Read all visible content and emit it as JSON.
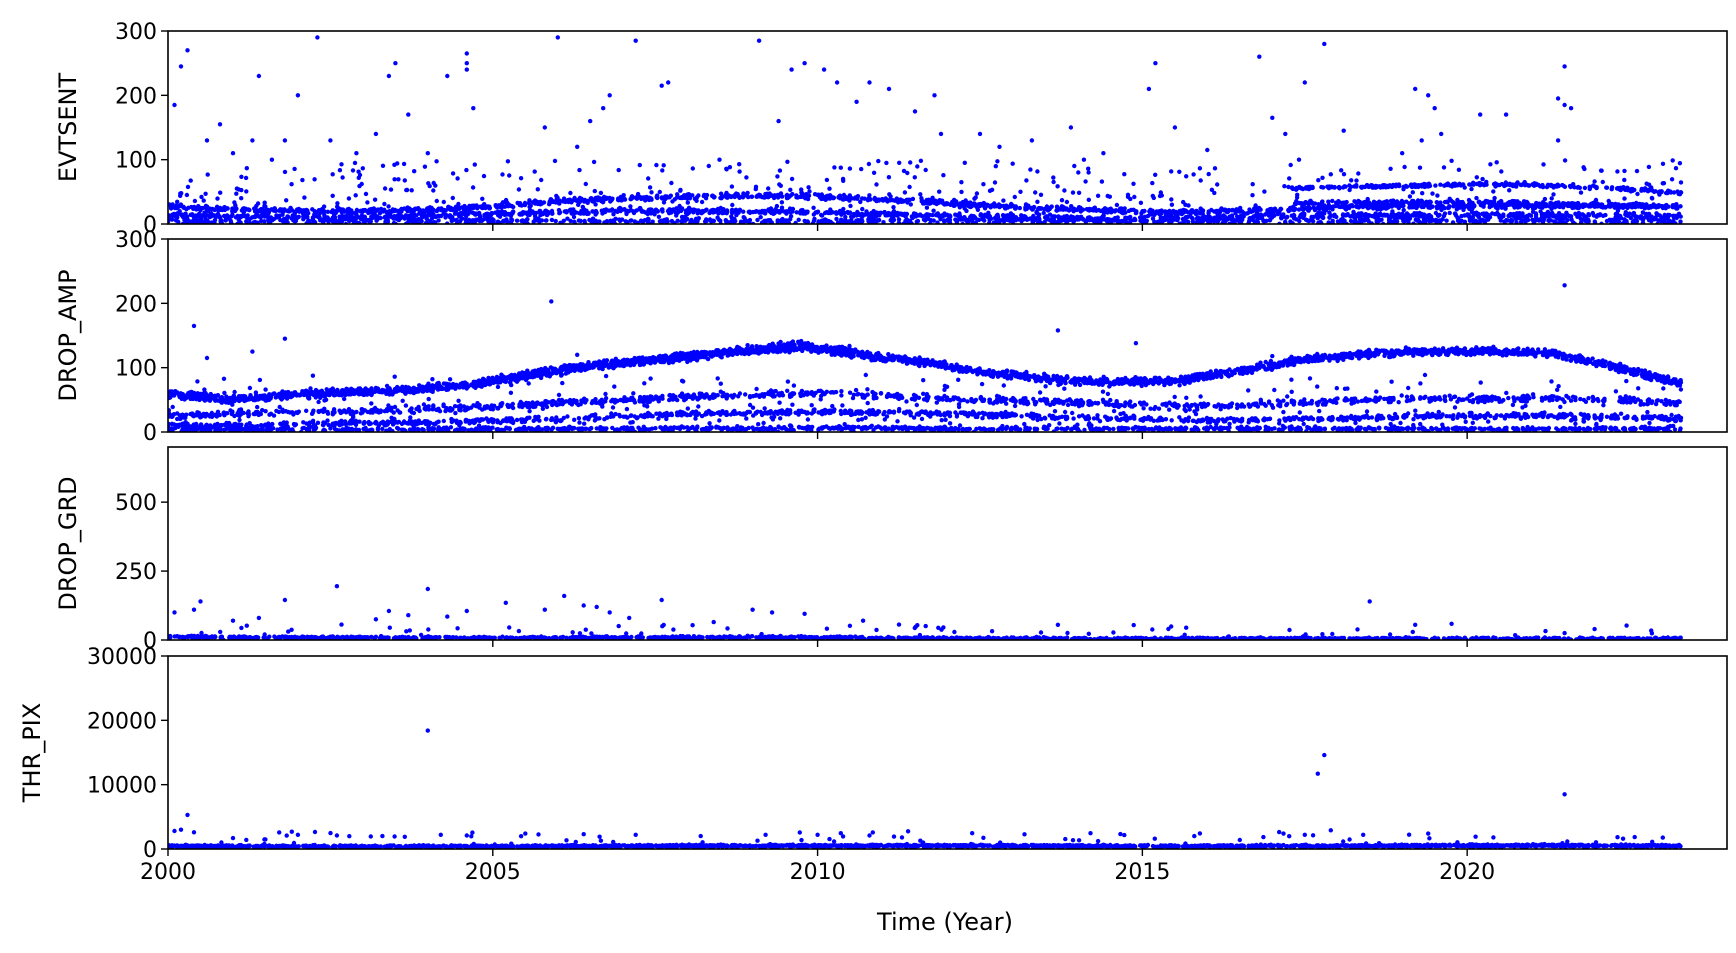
{
  "figure": {
    "xlabel": "Time (Year)",
    "point_color": "#0000ff"
  },
  "chart_data": [
    {
      "type": "scatter",
      "ylabel": "EVTSENT",
      "xlim": [
        2000,
        2024
      ],
      "ylim": [
        0,
        300
      ],
      "x_ticks": [
        2005,
        2010,
        2015,
        2020
      ],
      "y_ticks": [
        0,
        100,
        200,
        300
      ],
      "y_tick_labels": [
        "0",
        "100",
        "200",
        "300"
      ],
      "bands": [
        {
          "from": 2000.0,
          "to": 2023.3,
          "y": [
            28,
            22,
            20,
            20,
            22,
            28,
            35,
            40,
            42,
            44,
            42,
            38,
            32,
            26,
            22,
            18,
            20,
            22,
            28,
            28,
            28,
            28,
            28,
            26
          ],
          "spread": 6,
          "density": 60
        },
        {
          "from": 2000.0,
          "to": 2023.3,
          "y": [
            14,
            12,
            10,
            10,
            12,
            16,
            18,
            20,
            20,
            20,
            18,
            14,
            12,
            10,
            8,
            8,
            10,
            12,
            14,
            14,
            14,
            14,
            14,
            12
          ],
          "spread": 6,
          "density": 50
        },
        {
          "from": 2017.3,
          "to": 2023.3,
          "y": [
            55,
            58,
            60,
            62,
            60,
            55,
            48
          ],
          "spread": 4,
          "density": 45
        },
        {
          "from": 2017.3,
          "to": 2023.3,
          "y": [
            32,
            34,
            34,
            34,
            32,
            30,
            28
          ],
          "spread": 4,
          "density": 35
        },
        {
          "from": 2000.0,
          "to": 2023.3,
          "y": [
            5,
            5,
            5,
            5,
            5,
            5,
            5,
            5,
            5,
            5,
            5,
            5,
            5,
            5,
            5,
            5,
            5,
            5,
            5,
            5,
            5,
            5,
            5,
            5
          ],
          "spread": 5,
          "density": 25
        }
      ],
      "scatter": {
        "count": 900,
        "max": 100
      },
      "outliers": [
        [
          2000.1,
          185
        ],
        [
          2000.2,
          245
        ],
        [
          2000.3,
          270
        ],
        [
          2000.6,
          130
        ],
        [
          2000.8,
          155
        ],
        [
          2001.0,
          110
        ],
        [
          2001.3,
          130
        ],
        [
          2001.4,
          230
        ],
        [
          2001.6,
          100
        ],
        [
          2001.8,
          130
        ],
        [
          2002.0,
          200
        ],
        [
          2002.3,
          290
        ],
        [
          2002.5,
          130
        ],
        [
          2002.9,
          110
        ],
        [
          2003.2,
          140
        ],
        [
          2003.4,
          230
        ],
        [
          2003.5,
          250
        ],
        [
          2003.7,
          170
        ],
        [
          2004.0,
          110
        ],
        [
          2004.3,
          230
        ],
        [
          2004.6,
          250
        ],
        [
          2004.6,
          265
        ],
        [
          2004.6,
          240
        ],
        [
          2004.7,
          180
        ],
        [
          2005.8,
          150
        ],
        [
          2006.0,
          290
        ],
        [
          2006.3,
          120
        ],
        [
          2006.5,
          160
        ],
        [
          2006.7,
          180
        ],
        [
          2006.8,
          200
        ],
        [
          2007.2,
          285
        ],
        [
          2007.6,
          215
        ],
        [
          2007.7,
          220
        ],
        [
          2008.6,
          85
        ],
        [
          2009.1,
          285
        ],
        [
          2009.4,
          160
        ],
        [
          2009.6,
          240
        ],
        [
          2009.8,
          250
        ],
        [
          2010.1,
          240
        ],
        [
          2010.3,
          220
        ],
        [
          2010.6,
          190
        ],
        [
          2010.8,
          220
        ],
        [
          2011.1,
          210
        ],
        [
          2011.5,
          175
        ],
        [
          2011.8,
          200
        ],
        [
          2011.9,
          140
        ],
        [
          2012.5,
          140
        ],
        [
          2012.8,
          120
        ],
        [
          2013.3,
          130
        ],
        [
          2013.9,
          150
        ],
        [
          2014.1,
          100
        ],
        [
          2014.4,
          110
        ],
        [
          2015.2,
          250
        ],
        [
          2015.1,
          210
        ],
        [
          2015.5,
          150
        ],
        [
          2016.0,
          115
        ],
        [
          2016.8,
          260
        ],
        [
          2017.0,
          165
        ],
        [
          2017.2,
          140
        ],
        [
          2017.5,
          220
        ],
        [
          2017.8,
          280
        ],
        [
          2018.1,
          145
        ],
        [
          2019.0,
          110
        ],
        [
          2019.2,
          210
        ],
        [
          2019.4,
          200
        ],
        [
          2019.3,
          130
        ],
        [
          2019.5,
          180
        ],
        [
          2019.6,
          140
        ],
        [
          2020.2,
          170
        ],
        [
          2020.6,
          170
        ],
        [
          2021.4,
          130
        ],
        [
          2021.5,
          245
        ],
        [
          2021.4,
          195
        ],
        [
          2021.5,
          185
        ],
        [
          2021.6,
          180
        ]
      ]
    },
    {
      "type": "scatter",
      "ylabel": "DROP_AMP",
      "xlim": [
        2000,
        2024
      ],
      "ylim": [
        0,
        300
      ],
      "x_ticks": [
        2005,
        2010,
        2015,
        2020
      ],
      "y_ticks": [
        0,
        100,
        200,
        300
      ],
      "y_tick_labels": [
        "0",
        "100",
        "200",
        "300"
      ],
      "bands": [
        {
          "from": 2000.0,
          "to": 2023.3,
          "y": [
            60,
            50,
            58,
            62,
            66,
            76,
            92,
            105,
            115,
            125,
            135,
            120,
            108,
            92,
            82,
            78,
            80,
            95,
            112,
            122,
            125,
            126,
            122,
            100,
            75
          ],
          "spread": 9,
          "density": 120
        },
        {
          "from": 2005.0,
          "to": 2010.5,
          "y": [
            82,
            100,
            112,
            122,
            128,
            130
          ],
          "spread": 6,
          "density": 60
        },
        {
          "from": 2000.0,
          "to": 2023.3,
          "y": [
            25,
            28,
            30,
            32,
            35,
            40,
            45,
            50,
            55,
            58,
            62,
            55,
            50,
            48,
            45,
            42,
            40,
            45,
            50,
            52,
            52,
            52,
            50,
            45
          ],
          "spread": 8,
          "density": 45
        },
        {
          "from": 2000.0,
          "to": 2023.3,
          "y": [
            10,
            10,
            12,
            14,
            15,
            18,
            20,
            25,
            28,
            30,
            32,
            30,
            28,
            25,
            22,
            20,
            18,
            20,
            22,
            24,
            25,
            25,
            24,
            20
          ],
          "spread": 6,
          "density": 45
        },
        {
          "from": 2000.0,
          "to": 2023.3,
          "y": [
            4,
            4,
            4,
            4,
            4,
            4,
            5,
            5,
            6,
            6,
            6,
            6,
            5,
            5,
            5,
            5,
            5,
            5,
            5,
            5,
            5,
            5,
            5,
            4
          ],
          "spread": 4,
          "density": 40
        }
      ],
      "scatter": {
        "count": 500,
        "max": 90
      },
      "outliers": [
        [
          2000.4,
          165
        ],
        [
          2000.6,
          115
        ],
        [
          2001.3,
          125
        ],
        [
          2001.8,
          145
        ],
        [
          2005.9,
          203
        ],
        [
          2006.3,
          120
        ],
        [
          2013.7,
          158
        ],
        [
          2014.9,
          138
        ],
        [
          2021.5,
          228
        ],
        [
          2017.0,
          118
        ]
      ]
    },
    {
      "type": "scatter",
      "ylabel": "DROP_GRD",
      "xlim": [
        2000,
        2024
      ],
      "ylim": [
        0,
        700
      ],
      "x_ticks": [
        2005,
        2010,
        2015,
        2020
      ],
      "y_ticks": [
        0,
        250,
        500
      ],
      "y_tick_labels": [
        "0",
        "250",
        "500"
      ],
      "bands": [
        {
          "from": 2000.0,
          "to": 2023.3,
          "y": [
            12,
            10,
            9,
            8,
            8,
            8,
            8,
            9,
            10,
            10,
            9,
            7,
            6,
            5,
            5,
            5,
            5,
            5,
            5,
            5,
            5,
            5,
            5,
            5
          ],
          "spread": 6,
          "density": 60
        }
      ],
      "scatter": {
        "count": 140,
        "max": 60
      },
      "outliers": [
        [
          2000.1,
          100
        ],
        [
          2000.4,
          110
        ],
        [
          2000.5,
          140
        ],
        [
          2001.0,
          70
        ],
        [
          2001.4,
          80
        ],
        [
          2001.8,
          145
        ],
        [
          2002.6,
          195
        ],
        [
          2003.2,
          75
        ],
        [
          2003.4,
          105
        ],
        [
          2003.7,
          90
        ],
        [
          2004.0,
          185
        ],
        [
          2004.3,
          85
        ],
        [
          2004.6,
          105
        ],
        [
          2005.2,
          135
        ],
        [
          2005.8,
          110
        ],
        [
          2006.1,
          160
        ],
        [
          2006.4,
          125
        ],
        [
          2006.6,
          120
        ],
        [
          2006.8,
          100
        ],
        [
          2007.1,
          80
        ],
        [
          2007.6,
          145
        ],
        [
          2008.4,
          65
        ],
        [
          2009.0,
          110
        ],
        [
          2009.3,
          100
        ],
        [
          2009.8,
          95
        ],
        [
          2010.7,
          70
        ],
        [
          2013.7,
          55
        ],
        [
          2015.4,
          40
        ],
        [
          2018.5,
          140
        ],
        [
          2019.2,
          55
        ],
        [
          2021.5,
          25
        ]
      ]
    },
    {
      "type": "scatter",
      "ylabel": "THR_PIX",
      "xlim": [
        2000,
        2024
      ],
      "ylim": [
        0,
        30000
      ],
      "x_ticks": [
        2000,
        2005,
        2010,
        2015,
        2020
      ],
      "x_tick_labels": [
        "2000",
        "2005",
        "2010",
        "2015",
        "2020"
      ],
      "y_ticks": [
        0,
        10000,
        20000,
        30000
      ],
      "y_tick_labels": [
        "0",
        "10000",
        "20000",
        "30000"
      ],
      "bands": [
        {
          "from": 2000.0,
          "to": 2023.3,
          "y": [
            450,
            400,
            380,
            380,
            390,
            400,
            420,
            450,
            480,
            500,
            520,
            520,
            500,
            480,
            460,
            450,
            460,
            480,
            500,
            520,
            530,
            540,
            520,
            480
          ],
          "spread": 250,
          "density": 90
        }
      ],
      "scatter": {
        "count": 160,
        "max": 2800
      },
      "outliers": [
        [
          2000.1,
          2800
        ],
        [
          2000.2,
          3000
        ],
        [
          2000.3,
          5300
        ],
        [
          2000.4,
          2600
        ],
        [
          2001.0,
          1700
        ],
        [
          2001.5,
          1500
        ],
        [
          2002.0,
          2200
        ],
        [
          2002.6,
          2100
        ],
        [
          2003.3,
          2000
        ],
        [
          2004.0,
          18400
        ],
        [
          2004.2,
          2200
        ],
        [
          2004.6,
          2100
        ],
        [
          2005.5,
          2400
        ],
        [
          2006.4,
          2300
        ],
        [
          2007.2,
          2200
        ],
        [
          2008.2,
          2000
        ],
        [
          2009.2,
          2200
        ],
        [
          2010.0,
          2200
        ],
        [
          2010.8,
          2100
        ],
        [
          2011.3,
          1800
        ],
        [
          2015.8,
          2000
        ],
        [
          2017.5,
          2200
        ],
        [
          2017.8,
          14600
        ],
        [
          2017.7,
          11700
        ],
        [
          2017.9,
          2900
        ],
        [
          2018.4,
          2200
        ],
        [
          2019.4,
          2400
        ],
        [
          2021.5,
          8500
        ],
        [
          2022.4,
          1600
        ]
      ]
    }
  ]
}
